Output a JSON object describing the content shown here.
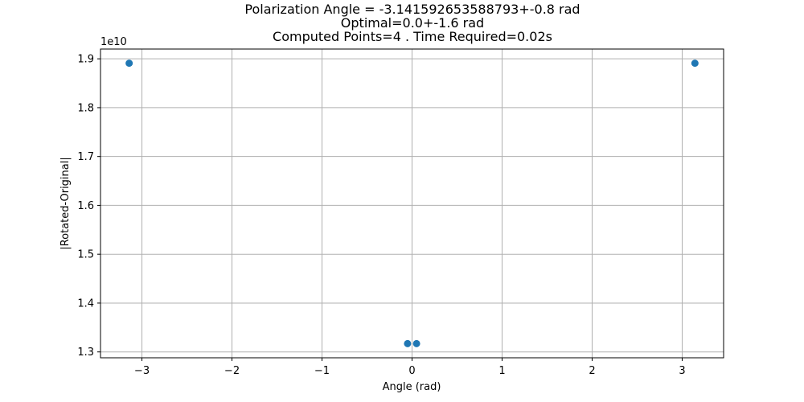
{
  "chart_data": {
    "type": "scatter",
    "title_lines": [
      "Polarization Angle = -3.141592653588793+-0.8 rad",
      "Optimal=0.0+-1.6 rad",
      "Computed Points=4 . Time Required=0.02s"
    ],
    "xlabel": "Angle (rad)",
    "ylabel": "|Rotated-Original|",
    "y_offset_label": "1e10",
    "x_ticks": [
      -3,
      -2,
      -1,
      0,
      1,
      2,
      3
    ],
    "x_tick_labels": [
      "−3",
      "−2",
      "−1",
      "0",
      "1",
      "2",
      "3"
    ],
    "y_ticks": [
      1.3,
      1.4,
      1.5,
      1.6,
      1.7,
      1.8,
      1.9
    ],
    "y_tick_labels": [
      "1.3",
      "1.4",
      "1.5",
      "1.6",
      "1.7",
      "1.8",
      "1.9"
    ],
    "xlim": [
      -3.46,
      3.46
    ],
    "ylim": [
      1.288,
      1.92
    ],
    "grid": true,
    "marker_color": "#1f77b4",
    "series": [
      {
        "x": [
          -3.1416,
          -0.05,
          0.05,
          3.1416
        ],
        "y": [
          1.891,
          1.317,
          1.317,
          1.891
        ]
      }
    ]
  }
}
